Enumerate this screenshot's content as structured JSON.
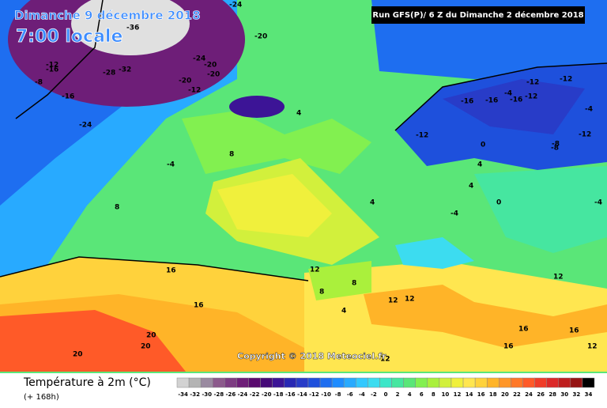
{
  "header": {
    "title": "Dimanche 9 décembre 2018",
    "time": "7:00 locale",
    "run": "Run GFS(P)/ 6 Z du Dimanche 2 décembre 2018"
  },
  "copyright": "Copyright © 2018 Meteociel.fr",
  "map": {
    "labels": [
      -24,
      -36,
      -20,
      -12,
      -16,
      -28,
      -32,
      -20,
      -24,
      -20,
      -8,
      -16,
      -24,
      -12,
      -20,
      -16,
      -12,
      -16,
      -16,
      -12,
      -12,
      -8,
      -12,
      -12,
      -4,
      4,
      8,
      -4,
      4,
      8,
      0,
      4,
      -4,
      4,
      12,
      16,
      16,
      20,
      20,
      20,
      8,
      4,
      12,
      12,
      8,
      16,
      12,
      12,
      16,
      16,
      12,
      0,
      -4,
      -8,
      -4
    ]
  },
  "legend": {
    "title": "Température à 2m (°C)",
    "subtitle": "(+ 168h)",
    "steps": [
      {
        "value": -34,
        "color": "#d2d2d2"
      },
      {
        "value": -32,
        "color": "#b4b4b4"
      },
      {
        "value": -30,
        "color": "#9a8aa0"
      },
      {
        "value": -28,
        "color": "#8c5a8c"
      },
      {
        "value": -26,
        "color": "#7d3c82"
      },
      {
        "value": -24,
        "color": "#6e1e78"
      },
      {
        "value": -22,
        "color": "#5a0a6e"
      },
      {
        "value": -20,
        "color": "#460a78"
      },
      {
        "value": -18,
        "color": "#3c1496"
      },
      {
        "value": -16,
        "color": "#2828b4"
      },
      {
        "value": -14,
        "color": "#283cc8"
      },
      {
        "value": -12,
        "color": "#1e50dc"
      },
      {
        "value": -10,
        "color": "#1e6ef0"
      },
      {
        "value": -8,
        "color": "#1e8cff"
      },
      {
        "value": -6,
        "color": "#28aaff"
      },
      {
        "value": -4,
        "color": "#32c8ff"
      },
      {
        "value": -2,
        "color": "#3cdcf0"
      },
      {
        "value": 0,
        "color": "#3ce6c8"
      },
      {
        "value": 2,
        "color": "#46e6a0"
      },
      {
        "value": 4,
        "color": "#5ae678"
      },
      {
        "value": 6,
        "color": "#82f050"
      },
      {
        "value": 8,
        "color": "#aaf03c"
      },
      {
        "value": 10,
        "color": "#d2f03c"
      },
      {
        "value": 12,
        "color": "#f0f03c"
      },
      {
        "value": 14,
        "color": "#ffe650"
      },
      {
        "value": 16,
        "color": "#ffd23c"
      },
      {
        "value": 18,
        "color": "#ffb428"
      },
      {
        "value": 20,
        "color": "#ff9628"
      },
      {
        "value": 22,
        "color": "#ff7828"
      },
      {
        "value": 24,
        "color": "#ff5a28"
      },
      {
        "value": 26,
        "color": "#f03c28"
      },
      {
        "value": 28,
        "color": "#dc2828"
      },
      {
        "value": 30,
        "color": "#be1e1e"
      },
      {
        "value": 32,
        "color": "#961414"
      },
      {
        "value": 34,
        "color": "#000000"
      }
    ]
  }
}
